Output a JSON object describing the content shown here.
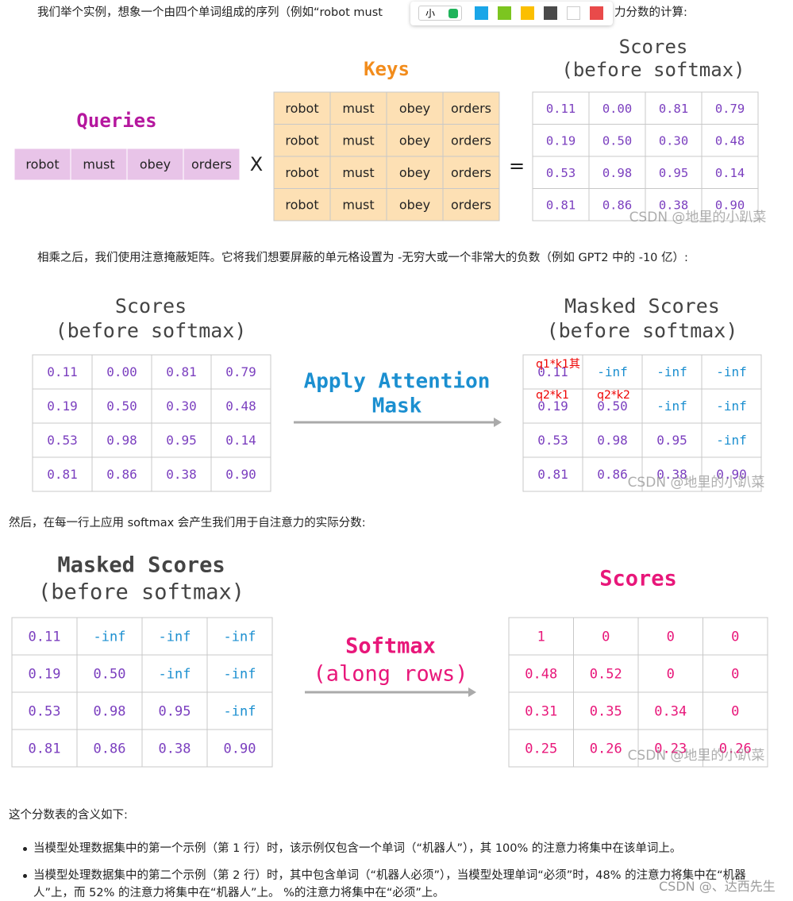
{
  "paragraphs": {
    "intro_left": "我们举个实例，想象一个由四个单词组成的序列（例如“robot must",
    "intro_right": "力分数的计算:",
    "after_multiply": "相乘之后，我们使用注意掩蔽矩阵。它将我们想要屏蔽的单元格设置为 -无穷大或一个非常大的负数（例如 GPT2 中的 -10 亿）:",
    "then_softmax": "然后，在每一行上应用 softmax 会产生我们用于自注意力的实际分数:",
    "meaning": "这个分数表的含义如下:"
  },
  "toolbar": {
    "size_label": "小",
    "swatches": [
      "#1aa6e8",
      "#7cc520",
      "#fbbf00",
      "#4a4a4a",
      "#ffffff",
      "#e94a4a"
    ]
  },
  "figure1": {
    "queries_title": "Queries",
    "queries": [
      "robot",
      "must",
      "obey",
      "orders"
    ],
    "times": "X",
    "keys_title": "Keys",
    "keys": [
      [
        "robot",
        "must",
        "obey",
        "orders"
      ],
      [
        "robot",
        "must",
        "obey",
        "orders"
      ],
      [
        "robot",
        "must",
        "obey",
        "orders"
      ],
      [
        "robot",
        "must",
        "obey",
        "orders"
      ]
    ],
    "equals": "=",
    "scores_title": [
      "Scores",
      "(before softmax)"
    ],
    "scores": [
      [
        "0.11",
        "0.00",
        "0.81",
        "0.79"
      ],
      [
        "0.19",
        "0.50",
        "0.30",
        "0.48"
      ],
      [
        "0.53",
        "0.98",
        "0.95",
        "0.14"
      ],
      [
        "0.81",
        "0.86",
        "0.38",
        "0.90"
      ]
    ],
    "watermark": "CSDN @地里的小趴菜"
  },
  "figure2": {
    "left_title": [
      "Scores",
      "(before softmax)"
    ],
    "left": [
      [
        "0.11",
        "0.00",
        "0.81",
        "0.79"
      ],
      [
        "0.19",
        "0.50",
        "0.30",
        "0.48"
      ],
      [
        "0.53",
        "0.98",
        "0.95",
        "0.14"
      ],
      [
        "0.81",
        "0.86",
        "0.38",
        "0.90"
      ]
    ],
    "action": [
      "Apply Attention",
      "Mask"
    ],
    "right_title": [
      "Masked Scores",
      "(before softmax)"
    ],
    "right": [
      [
        "0.11",
        "-inf",
        "-inf",
        "-inf"
      ],
      [
        "0.19",
        "0.50",
        "-inf",
        "-inf"
      ],
      [
        "0.53",
        "0.98",
        "0.95",
        "-inf"
      ],
      [
        "0.81",
        "0.86",
        "0.38",
        "0.90"
      ]
    ],
    "annotations": [
      "q1*k1其",
      "q2*k1",
      "q2*k2"
    ],
    "watermark": "CSDN @地里的小趴菜"
  },
  "figure3": {
    "left_title": [
      "Masked Scores",
      "(before softmax)"
    ],
    "left": [
      [
        "0.11",
        "-inf",
        "-inf",
        "-inf"
      ],
      [
        "0.19",
        "0.50",
        "-inf",
        "-inf"
      ],
      [
        "0.53",
        "0.98",
        "0.95",
        "-inf"
      ],
      [
        "0.81",
        "0.86",
        "0.38",
        "0.90"
      ]
    ],
    "action": [
      "Softmax",
      "(along rows)"
    ],
    "right_title": [
      "Scores"
    ],
    "right": [
      [
        "1",
        "0",
        "0",
        "0"
      ],
      [
        "0.48",
        "0.52",
        "0",
        "0"
      ],
      [
        "0.31",
        "0.35",
        "0.34",
        "0"
      ],
      [
        "0.25",
        "0.26",
        "0.23",
        "0.26"
      ]
    ],
    "watermark": "CSDN @地里的小趴菜"
  },
  "bullets": [
    "当模型处理数据集中的第一个示例（第 1 行）时，该示例仅包含一个单词（“机器人”），其 100% 的注意力将集中在该单词上。",
    "当模型处理数据集中的第二个示例（第 2 行）时，其中包含单词（“机器人必须”），当模型处理单词“必须”时，48% 的注意力将集中在“机器人”上，而 52% 的注意力将集中在“机器人”上。 %的注意力将集中在“必须”上。"
  ],
  "footer_watermark": "CSDN @、达西先生"
}
